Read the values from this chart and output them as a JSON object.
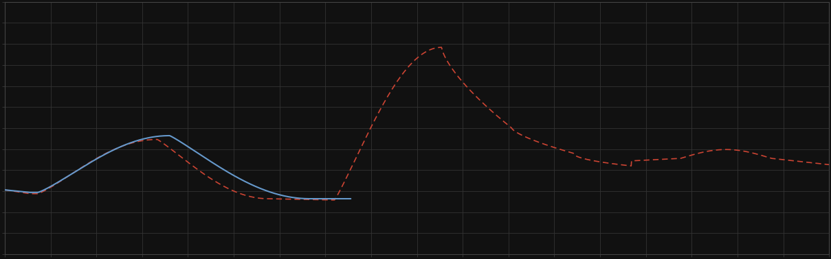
{
  "background_color": "#111111",
  "plot_bg_color": "#111111",
  "grid_color": "#333333",
  "blue_line_color": "#6699cc",
  "red_line_color": "#cc4433",
  "xlim": [
    0,
    1
  ],
  "ylim": [
    0,
    1
  ],
  "figsize": [
    12.09,
    3.78
  ],
  "dpi": 100,
  "spine_color": "#444444",
  "tick_color": "#444444",
  "nx_grid": 19,
  "ny_grid": 13
}
